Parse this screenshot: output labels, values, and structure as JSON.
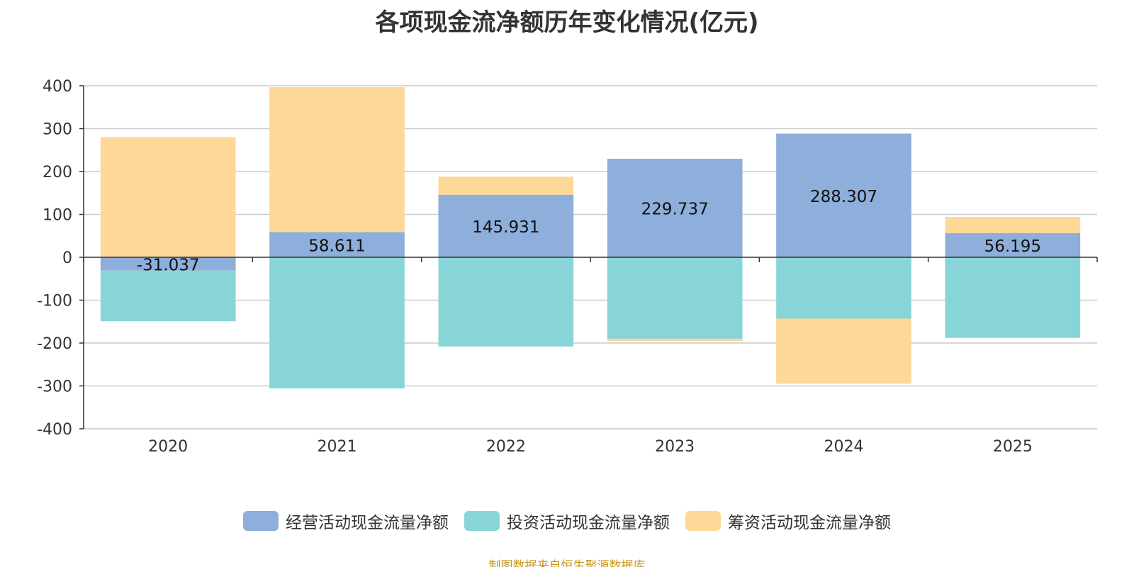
{
  "chart_data": {
    "type": "bar",
    "stacked": true,
    "title": "各项现金流净额历年变化情况(亿元)",
    "xlabel": "",
    "ylabel": "",
    "categories": [
      "2020",
      "2021",
      "2022",
      "2023",
      "2024",
      "2025"
    ],
    "ylim": [
      -400,
      400
    ],
    "yticks": [
      400,
      300,
      200,
      100,
      0,
      -100,
      -200,
      -300,
      -400
    ],
    "grid": true,
    "legend_position": "bottom",
    "series": [
      {
        "name": "经营活动现金流量净额",
        "color": "#8eaedb",
        "values": [
          -31.037,
          58.611,
          145.931,
          229.737,
          288.307,
          56.195
        ],
        "labels": [
          "-31.037",
          "58.611",
          "145.931",
          "229.737",
          "288.307",
          "56.195"
        ]
      },
      {
        "name": "投资活动现金流量净额",
        "color": "#88d5d8",
        "values": [
          -118,
          -306,
          -208,
          -190,
          -143,
          -188
        ]
      },
      {
        "name": "筹资活动现金流量净额",
        "color": "#fed897",
        "values": [
          280,
          338,
          42,
          -5,
          -152,
          38
        ]
      }
    ]
  },
  "source_note": "制图数据来自恒生聚源数据库"
}
